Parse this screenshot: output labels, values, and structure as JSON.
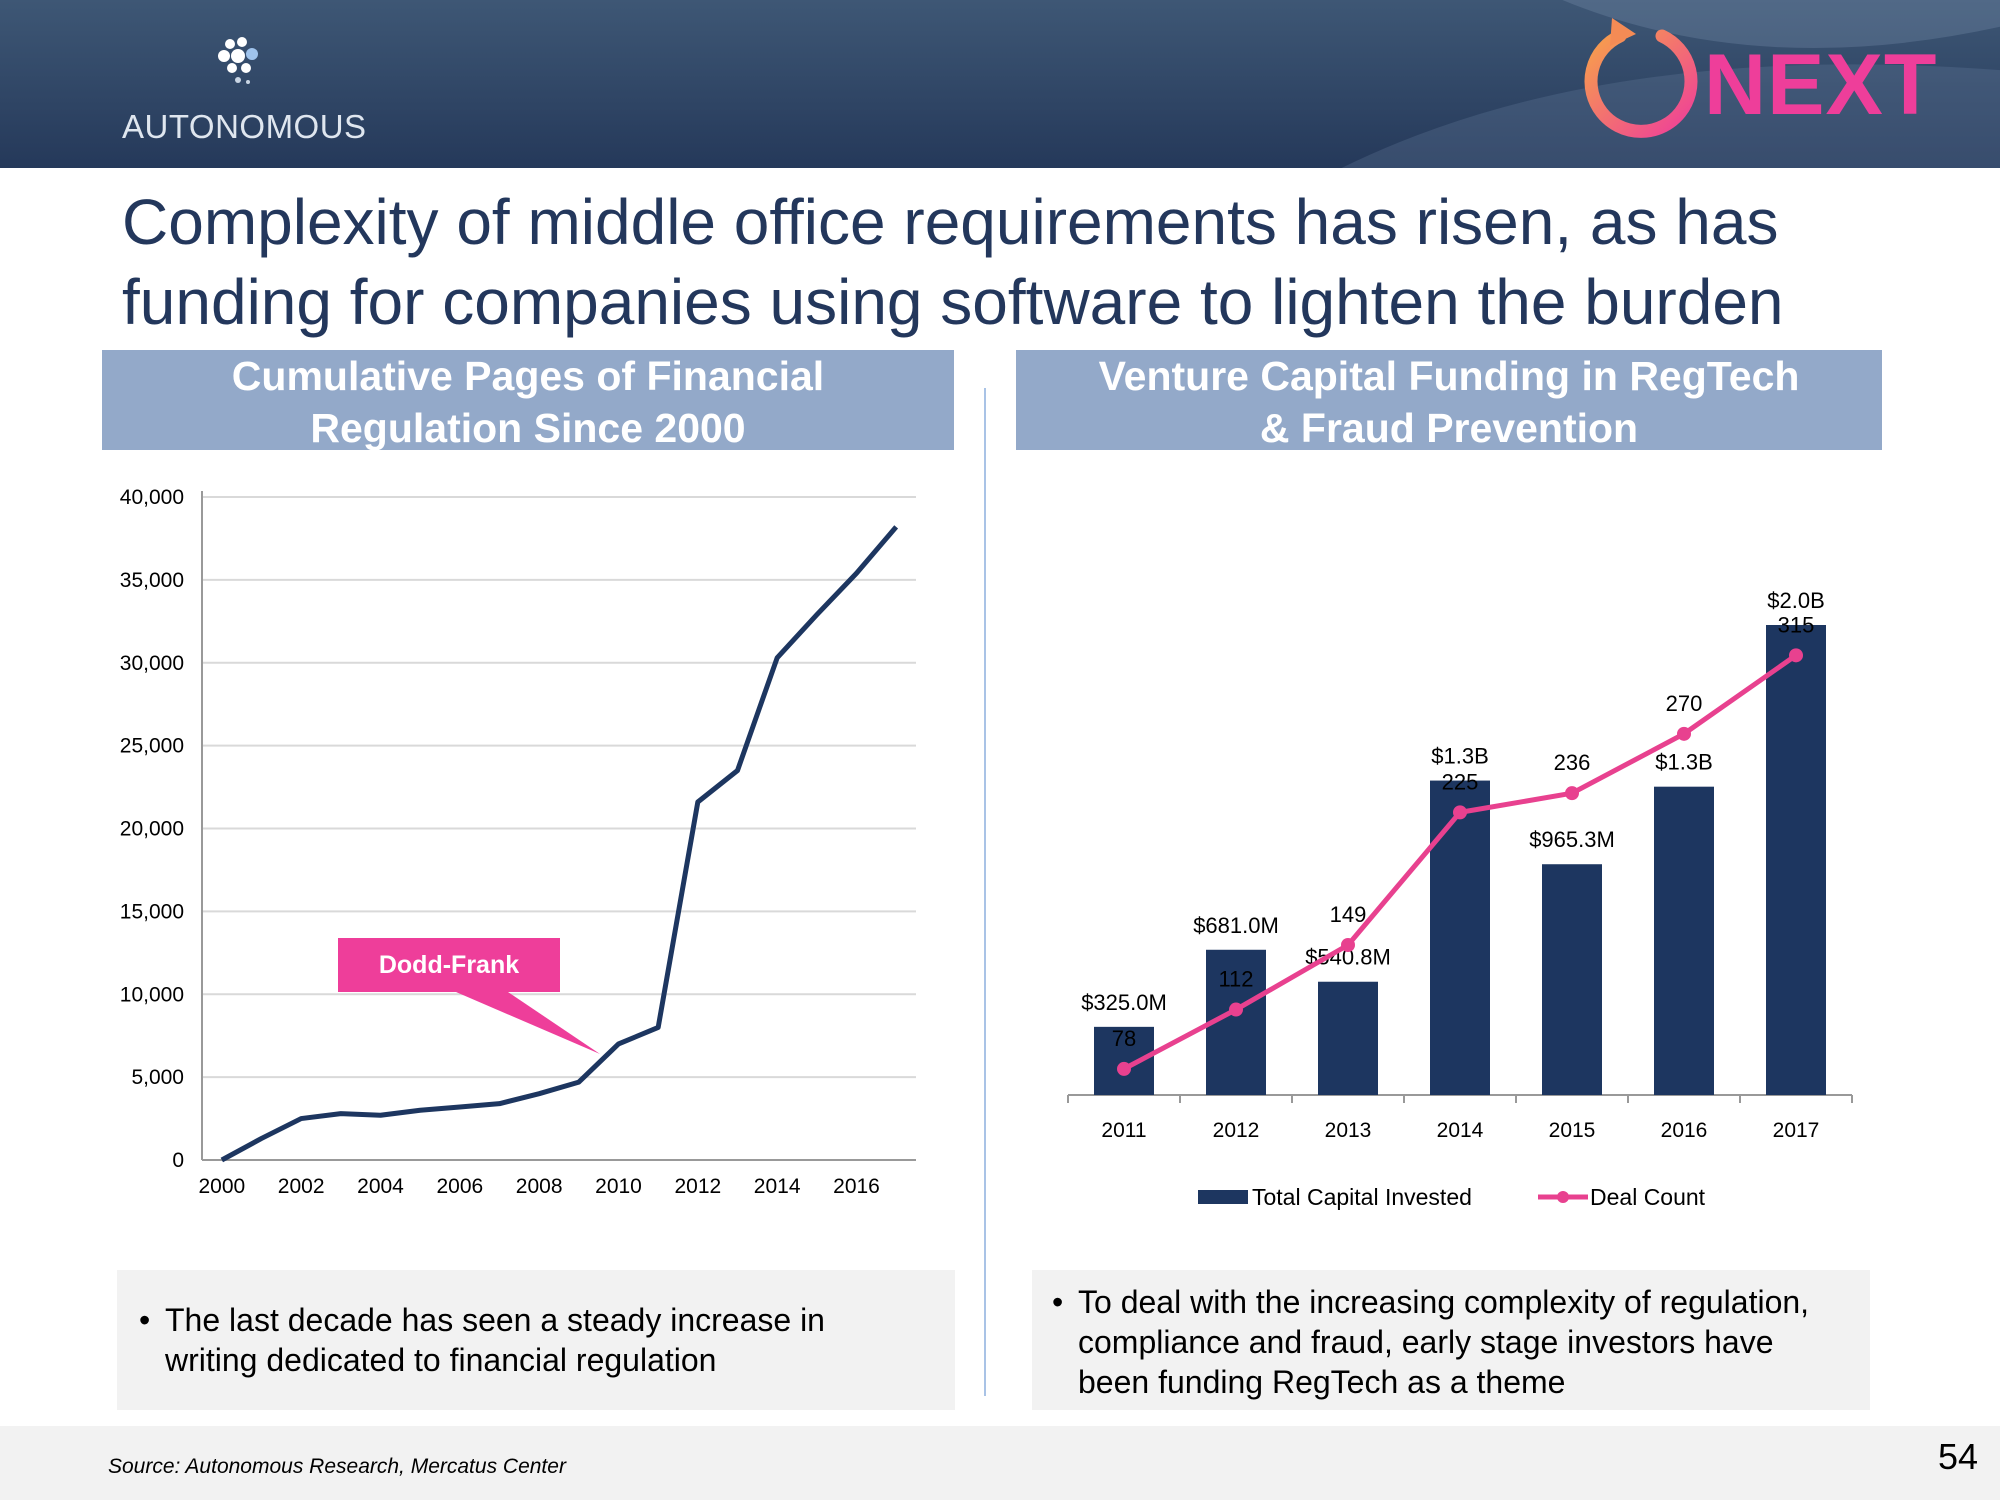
{
  "brand": {
    "name": "AUTONOMOUS",
    "next_logo_text": "NEXT"
  },
  "colors": {
    "navy": "#1d3660",
    "pink": "#e8418f",
    "header_band": "#93a9c9"
  },
  "title": {
    "line1": "Complexity of middle office requirements has risen, as has",
    "line2": "funding for companies using software to lighten the burden"
  },
  "left_panel": {
    "title_line1": "Cumulative Pages of Financial",
    "title_line2": "Regulation Since 2000",
    "annotation": "Dodd-Frank",
    "note": "The last decade has seen a steady increase in writing dedicated to financial regulation",
    "note_line1": "The last decade has seen a steady increase in",
    "note_line2": "writing dedicated to financial regulation"
  },
  "right_panel": {
    "title_line1": "Venture Capital Funding in RegTech",
    "title_line2": "& Fraud Prevention",
    "note_line1": "To deal with the increasing complexity of regulation,",
    "note_line2": "compliance and fraud, early stage investors have",
    "note_line3": "been funding RegTech as a theme"
  },
  "chart_data": [
    {
      "type": "line",
      "title": "Cumulative Pages of Financial Regulation Since 2000",
      "x": [
        2000,
        2001,
        2002,
        2003,
        2004,
        2005,
        2006,
        2007,
        2008,
        2009,
        2010,
        2011,
        2012,
        2013,
        2014,
        2015,
        2016,
        2017
      ],
      "values": [
        0,
        1300,
        2500,
        2800,
        2700,
        3000,
        3200,
        3400,
        4000,
        4700,
        7000,
        8000,
        21600,
        23500,
        30300,
        32900,
        35400,
        38200
      ],
      "xticks": [
        "2000",
        "2002",
        "2004",
        "2006",
        "2008",
        "2010",
        "2012",
        "2014",
        "2016"
      ],
      "yticks": [
        "0",
        "5,000",
        "10,000",
        "15,000",
        "20,000",
        "25,000",
        "30,000",
        "35,000",
        "40,000"
      ],
      "ylim": [
        0,
        40000
      ],
      "grid": true,
      "annotation": {
        "text": "Dodd-Frank",
        "x": 2010,
        "y": 7000
      }
    },
    {
      "type": "bar",
      "title": "Venture Capital Funding in RegTech & Fraud Prevention",
      "categories": [
        "2011",
        "2012",
        "2013",
        "2014",
        "2015",
        "2016",
        "2017"
      ],
      "series": [
        {
          "name": "Total Capital Invested",
          "values": [
            325.0,
            681.0,
            540.8,
            1300,
            965.3,
            1300,
            2000
          ],
          "labels": [
            "$325.0M",
            "$681.0M",
            "$540.8M",
            "$1.3B",
            "$965.3M",
            "$1.3B",
            "$2.0B"
          ],
          "bar_heights_relative": [
            0.145,
            0.309,
            0.241,
            0.669,
            0.491,
            0.656,
            1.0
          ]
        },
        {
          "name": "Deal Count",
          "type": "line",
          "values": [
            78,
            112,
            149,
            225,
            236,
            270,
            315
          ],
          "labels": [
            "78",
            "112",
            "149",
            "225",
            "236",
            "270",
            "315"
          ]
        }
      ],
      "legend": [
        "Total Capital Invested",
        "Deal Count"
      ],
      "legend_position": "bottom"
    }
  ],
  "footer": {
    "source": "Source: Autonomous Research, Mercatus Center",
    "page_number": "54"
  }
}
